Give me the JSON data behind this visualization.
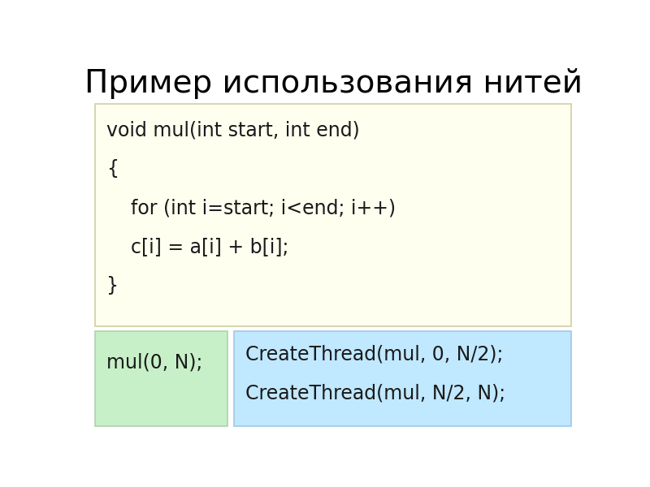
{
  "title": "Пример использования нитей",
  "title_fontsize": 28,
  "title_color": "#000000",
  "bg_color": "#ffffff",
  "top_box_color": "#fffff0",
  "top_box_border": "#d0d0a0",
  "bottom_left_box_color": "#c8f0c8",
  "bottom_left_box_border": "#b0d0b0",
  "bottom_right_box_color": "#c0e8ff",
  "bottom_right_box_border": "#a0c8e8",
  "top_code_lines": [
    "void mul(int start, int end)",
    "{",
    "    for (int i=start; i<end; i++)",
    "    c[i] = a[i] + b[i];",
    "}"
  ],
  "bottom_left_text": "mul(0, N);",
  "bottom_right_lines": [
    "CreateThread(mul, 0, N/2);",
    "CreateThread(mul, N/2, N);"
  ],
  "code_fontsize": 17,
  "code_color": "#1a1a1a"
}
